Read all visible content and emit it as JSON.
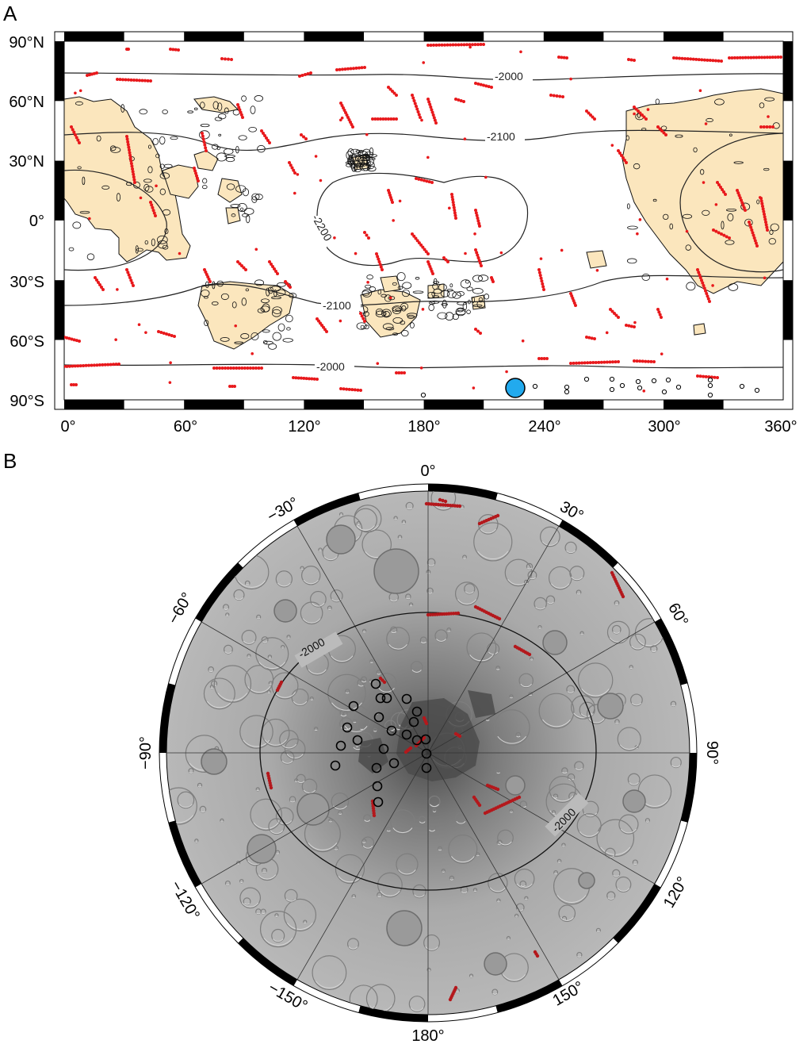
{
  "panelA": {
    "label": "A",
    "lat_ticks": [
      "90°N",
      "60°N",
      "30°N",
      "0°",
      "30°S",
      "60°S",
      "90°S"
    ],
    "lon_ticks": [
      "0°",
      "60°",
      "120°",
      "180°",
      "240°",
      "300°",
      "360°"
    ],
    "contours": [
      "-2000",
      "-2100",
      "-2200",
      "-2100",
      "-2000"
    ],
    "colors": {
      "scarp": "#e8191c",
      "plains": "#fbe6bd",
      "marker": "#22aaee"
    }
  },
  "panelB": {
    "label": "B",
    "lon_labels": [
      "0°",
      "30°",
      "60°",
      "90°",
      "120°",
      "150°",
      "180°",
      "−150°",
      "−120°",
      "−90°",
      "−60°",
      "−30°"
    ],
    "contours": [
      "-2000",
      "-2000"
    ],
    "colors": {
      "scarp": "#b4181c"
    }
  }
}
